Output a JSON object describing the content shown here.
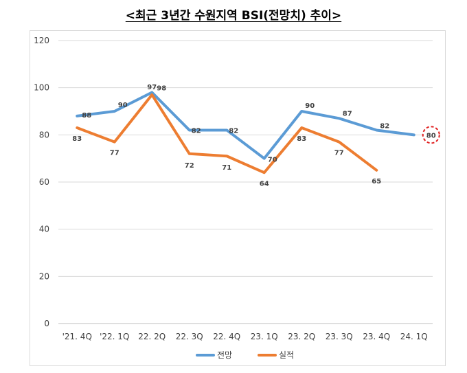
{
  "chart_data": {
    "type": "line",
    "title": "<최근 3년간 수원지역 BSI(전망치) 추이>",
    "categories": [
      "'21. 4Q",
      "'22. 1Q",
      "22. 2Q",
      "22. 3Q",
      "22. 4Q",
      "23. 1Q",
      "23. 2Q",
      "23. 3Q",
      "23. 4Q",
      "24. 1Q"
    ],
    "series": [
      {
        "name": "전망",
        "color": "#5b9bd5",
        "values": [
          88,
          90,
          98,
          82,
          82,
          70,
          90,
          87,
          82,
          80
        ]
      },
      {
        "name": "실적",
        "color": "#ed7d31",
        "values": [
          83,
          77,
          97,
          72,
          71,
          64,
          83,
          77,
          65,
          null
        ]
      }
    ],
    "ylim": [
      0,
      120
    ],
    "yticks": [
      0,
      20,
      40,
      60,
      80,
      100,
      120
    ],
    "grid": true,
    "legend": "bottom",
    "highlight": {
      "series": 0,
      "index": 9,
      "color": "#e02020"
    }
  }
}
